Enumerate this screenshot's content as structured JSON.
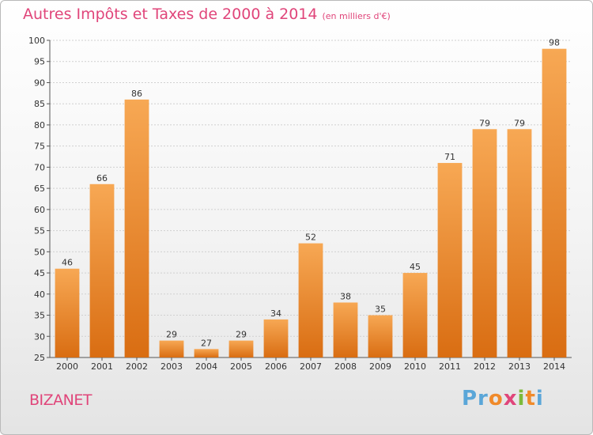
{
  "header": {
    "title": "Autres Impôts et Taxes de 2000 à 2014",
    "subtitle": "(en milliers d'€)"
  },
  "footer": {
    "commune": "BIZANET",
    "logo_text": "Proxiti"
  },
  "colors": {
    "bar_light": "#f7a854",
    "bar_dark": "#d96d12",
    "title": "#e0457a",
    "grid": "#d0d0d0"
  },
  "chart_data": {
    "type": "bar",
    "title": "Autres Impôts et Taxes de 2000 à 2014",
    "subtitle": "(en milliers d'€)",
    "categories": [
      "2000",
      "2001",
      "2002",
      "2003",
      "2004",
      "2005",
      "2006",
      "2007",
      "2008",
      "2009",
      "2010",
      "2011",
      "2012",
      "2013",
      "2014"
    ],
    "values": [
      46,
      66,
      86,
      29,
      27,
      29,
      34,
      52,
      38,
      35,
      45,
      71,
      79,
      79,
      98
    ],
    "ylim": [
      25,
      100
    ],
    "yticks": [
      25,
      30,
      35,
      40,
      45,
      50,
      55,
      60,
      65,
      70,
      75,
      80,
      85,
      90,
      95,
      100
    ],
    "grid": true,
    "xlabel": "",
    "ylabel": ""
  }
}
